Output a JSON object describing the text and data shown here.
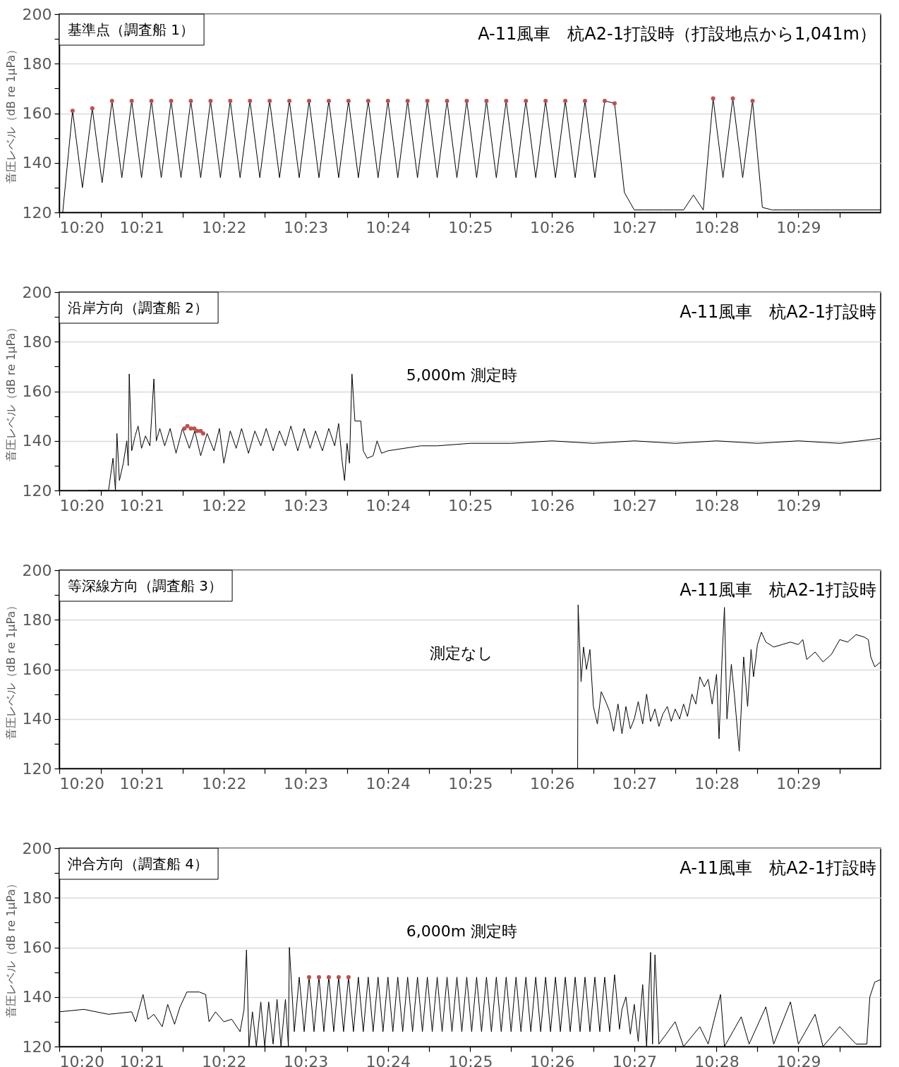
{
  "chart_data": [
    {
      "type": "line",
      "title": "基準点（調査船 1）",
      "subtitle": "A-11風車　杭A2-1打設時（打設地点から1,041m）",
      "ylabel": "音圧レベル（dB re 1μPa）",
      "xlim": [
        10.3333,
        10.5
      ],
      "xticks": [
        {
          "value": 10.3333,
          "label": "10:20"
        },
        {
          "value": 10.3417,
          "label": null
        },
        {
          "value": 10.35,
          "label": "10:21"
        },
        {
          "value": 10.3583,
          "label": null
        },
        {
          "value": 10.3667,
          "label": "10:22"
        },
        {
          "value": 10.375,
          "label": null
        },
        {
          "value": 10.3833,
          "label": "10:23"
        },
        {
          "value": 10.3917,
          "label": null
        },
        {
          "value": 10.4,
          "label": "10:24"
        },
        {
          "value": 10.4083,
          "label": null
        },
        {
          "value": 10.4167,
          "label": "10:25"
        },
        {
          "value": 10.425,
          "label": null
        },
        {
          "value": 10.4333,
          "label": "10:26"
        },
        {
          "value": 10.4417,
          "label": null
        },
        {
          "value": 10.45,
          "label": "10:27"
        },
        {
          "value": 10.4583,
          "label": null
        },
        {
          "value": 10.4667,
          "label": "10:28"
        },
        {
          "value": 10.475,
          "label": null
        },
        {
          "value": 10.4833,
          "label": "10:29"
        },
        {
          "value": 10.4917,
          "label": null
        }
      ],
      "ylim": [
        120,
        200
      ],
      "yticks": [
        120,
        {
          "value": 130,
          "label": null
        },
        140,
        {
          "value": 150,
          "label": null
        },
        160,
        {
          "value": 170,
          "label": null
        },
        180,
        {
          "value": 190,
          "label": null
        },
        200
      ],
      "grid": "y",
      "series": [
        {
          "type": "line",
          "color": "#000000",
          "x": [
            10.334,
            10.336,
            10.338,
            10.34,
            10.342,
            10.344,
            10.346,
            10.348,
            10.35,
            10.352,
            10.354,
            10.356,
            10.358,
            10.36,
            10.362,
            10.364,
            10.366,
            10.368,
            10.37,
            10.372,
            10.374,
            10.376,
            10.378,
            10.38,
            10.382,
            10.384,
            10.386,
            10.388,
            10.39,
            10.392,
            10.394,
            10.396,
            10.398,
            10.4,
            10.402,
            10.404,
            10.406,
            10.408,
            10.41,
            10.412,
            10.414,
            10.416,
            10.418,
            10.42,
            10.422,
            10.424,
            10.426,
            10.428,
            10.43,
            10.432,
            10.434,
            10.436,
            10.438,
            10.44,
            10.442,
            10.444,
            10.446,
            10.448,
            10.45,
            10.452,
            10.454,
            10.456,
            10.458,
            10.46,
            10.462,
            10.464,
            10.466,
            10.468,
            10.47,
            10.472,
            10.474,
            10.476,
            10.478,
            10.48,
            10.482,
            10.484,
            10.486,
            10.488,
            10.49,
            10.492,
            10.494,
            10.496,
            10.498,
            10.5
          ],
          "values": [
            120,
            161,
            130,
            162,
            132,
            165,
            134,
            165,
            134,
            165,
            134,
            165,
            134,
            165,
            134,
            165,
            134,
            165,
            134,
            165,
            134,
            165,
            134,
            165,
            134,
            165,
            134,
            165,
            134,
            165,
            134,
            165,
            134,
            165,
            134,
            165,
            134,
            165,
            134,
            165,
            134,
            165,
            134,
            165,
            134,
            165,
            134,
            165,
            134,
            165,
            134,
            165,
            134,
            165,
            134,
            165,
            164,
            128,
            121,
            121,
            121,
            121,
            121,
            121,
            127,
            121,
            166,
            134,
            166,
            134,
            165,
            122,
            121,
            121,
            121,
            121,
            121,
            121,
            121,
            121,
            121,
            121,
            121,
            121
          ]
        },
        {
          "type": "scatter",
          "color": "#c0504d",
          "marker": "circle",
          "x": [
            10.336,
            10.34,
            10.344,
            10.348,
            10.352,
            10.356,
            10.36,
            10.364,
            10.368,
            10.372,
            10.376,
            10.38,
            10.384,
            10.388,
            10.392,
            10.396,
            10.4,
            10.404,
            10.408,
            10.412,
            10.416,
            10.42,
            10.424,
            10.428,
            10.432,
            10.436,
            10.44,
            10.444,
            10.446,
            10.466,
            10.47,
            10.474
          ],
          "values": [
            161,
            162,
            165,
            165,
            165,
            165,
            165,
            165,
            165,
            165,
            165,
            165,
            165,
            165,
            165,
            165,
            165,
            165,
            165,
            165,
            165,
            165,
            165,
            165,
            165,
            165,
            165,
            165,
            164,
            166,
            166,
            165
          ]
        }
      ]
    },
    {
      "type": "line",
      "title": "沿岸方向（調査船 2）",
      "subtitle": "A-11風車　杭A2-1打設時",
      "ylabel": "音圧レベル（dB re 1μPa）",
      "xlim": [
        10.3333,
        10.5
      ],
      "xticks": [
        {
          "value": 10.3333,
          "label": "10:20"
        },
        {
          "value": 10.3417,
          "label": null
        },
        {
          "value": 10.35,
          "label": "10:21"
        },
        {
          "value": 10.3583,
          "label": null
        },
        {
          "value": 10.3667,
          "label": "10:22"
        },
        {
          "value": 10.375,
          "label": null
        },
        {
          "value": 10.3833,
          "label": "10:23"
        },
        {
          "value": 10.3917,
          "label": null
        },
        {
          "value": 10.4,
          "label": "10:24"
        },
        {
          "value": 10.4083,
          "label": null
        },
        {
          "value": 10.4167,
          "label": "10:25"
        },
        {
          "value": 10.425,
          "label": null
        },
        {
          "value": 10.4333,
          "label": "10:26"
        },
        {
          "value": 10.4417,
          "label": null
        },
        {
          "value": 10.45,
          "label": "10:27"
        },
        {
          "value": 10.4583,
          "label": null
        },
        {
          "value": 10.4667,
          "label": "10:28"
        },
        {
          "value": 10.475,
          "label": null
        },
        {
          "value": 10.4833,
          "label": "10:29"
        },
        {
          "value": 10.4917,
          "label": null
        }
      ],
      "ylim": [
        120,
        200
      ],
      "yticks": [
        120,
        {
          "value": 130,
          "label": null
        },
        140,
        {
          "value": 150,
          "label": null
        },
        160,
        {
          "value": 170,
          "label": null
        },
        180,
        {
          "value": 190,
          "label": null
        },
        200
      ],
      "grid": "y",
      "annotations": [
        "5,000m 測定時"
      ],
      "series": [
        {
          "type": "line",
          "color": "#000000",
          "x": [
            10.3392,
            10.3433,
            10.3442,
            10.3447,
            10.345,
            10.3455,
            10.3463,
            10.347,
            10.3473,
            10.3475,
            10.348,
            10.3487,
            10.3493,
            10.35,
            10.3508,
            10.3517,
            10.3525,
            10.353,
            10.3537,
            10.3547,
            10.3558,
            10.357,
            10.3583,
            10.3597,
            10.3608,
            10.362,
            10.3633,
            10.3647,
            10.3658,
            10.3667,
            10.368,
            10.3692,
            10.3703,
            10.3717,
            10.373,
            10.3742,
            10.3753,
            10.3767,
            10.378,
            10.3792,
            10.3803,
            10.3817,
            10.383,
            10.3842,
            10.3853,
            10.3867,
            10.388,
            10.3892,
            10.39,
            10.3907,
            10.3912,
            10.3917,
            10.3922,
            10.3927,
            10.3933,
            10.3945,
            10.395,
            10.3958,
            10.397,
            10.3978,
            10.3987,
            10.4,
            10.4033,
            10.4067,
            10.41,
            10.4167,
            10.425,
            10.4333,
            10.4417,
            10.45,
            10.4583,
            10.4667,
            10.475,
            10.4833,
            10.4917,
            10.5
          ],
          "values": [
            120,
            120,
            133,
            120,
            143,
            124,
            131,
            140,
            130,
            167,
            136,
            142,
            146,
            137,
            142,
            138,
            165,
            140,
            145,
            138,
            145,
            135,
            145,
            137,
            144,
            134,
            143,
            136,
            145,
            131,
            144,
            137,
            145,
            135,
            144,
            138,
            145,
            136,
            144,
            138,
            146,
            136,
            145,
            137,
            144,
            136,
            145,
            138,
            147,
            132,
            124,
            139,
            131,
            167,
            148,
            148,
            136,
            133,
            134,
            140,
            135,
            136,
            137,
            138,
            138,
            139,
            139,
            140,
            139,
            140,
            139,
            140,
            139,
            140,
            139,
            141
          ]
        },
        {
          "type": "scatter",
          "color": "#c0504d",
          "marker": "circle",
          "x": [
            10.3587,
            10.3593,
            10.36,
            10.3607,
            10.3613,
            10.362,
            10.3625
          ],
          "values": [
            145,
            146,
            145,
            145,
            144,
            144,
            143
          ]
        }
      ]
    },
    {
      "type": "line",
      "title": "等深線方向（調査船 3）",
      "subtitle": "A-11風車　杭A2-1打設時",
      "ylabel": "音圧レベル（dB re 1μPa）",
      "xlim": [
        10.3333,
        10.5
      ],
      "xticks": [
        {
          "value": 10.3333,
          "label": "10:20"
        },
        {
          "value": 10.3417,
          "label": null
        },
        {
          "value": 10.35,
          "label": "10:21"
        },
        {
          "value": 10.3583,
          "label": null
        },
        {
          "value": 10.3667,
          "label": "10:22"
        },
        {
          "value": 10.375,
          "label": null
        },
        {
          "value": 10.3833,
          "label": "10:23"
        },
        {
          "value": 10.3917,
          "label": null
        },
        {
          "value": 10.4,
          "label": "10:24"
        },
        {
          "value": 10.4083,
          "label": null
        },
        {
          "value": 10.4167,
          "label": "10:25"
        },
        {
          "value": 10.425,
          "label": null
        },
        {
          "value": 10.4333,
          "label": "10:26"
        },
        {
          "value": 10.4417,
          "label": null
        },
        {
          "value": 10.45,
          "label": "10:27"
        },
        {
          "value": 10.4583,
          "label": null
        },
        {
          "value": 10.4667,
          "label": "10:28"
        },
        {
          "value": 10.475,
          "label": null
        },
        {
          "value": 10.4833,
          "label": "10:29"
        },
        {
          "value": 10.4917,
          "label": null
        }
      ],
      "ylim": [
        120,
        200
      ],
      "yticks": [
        120,
        {
          "value": 130,
          "label": null
        },
        140,
        {
          "value": 150,
          "label": null
        },
        160,
        {
          "value": 170,
          "label": null
        },
        180,
        {
          "value": 190,
          "label": null
        },
        200
      ],
      "grid": "y",
      "annotations": [
        "測定なし"
      ],
      "series": [
        {
          "type": "line",
          "color": "#000000",
          "x": [
            10.4385,
            10.4386,
            10.4392,
            10.4397,
            10.4403,
            10.441,
            10.4417,
            10.4425,
            10.4433,
            10.4442,
            10.445,
            10.4458,
            10.4467,
            10.4475,
            10.4483,
            10.4492,
            10.45,
            10.4508,
            10.4517,
            10.4525,
            10.4533,
            10.4542,
            10.455,
            10.4558,
            10.4567,
            10.4575,
            10.4583,
            10.4592,
            10.46,
            10.4608,
            10.4617,
            10.4625,
            10.4633,
            10.4642,
            10.465,
            10.4658,
            10.4667,
            10.4672,
            10.4678,
            10.4683,
            10.4688,
            10.4697,
            10.4703,
            10.4713,
            10.4722,
            10.473,
            10.4737,
            10.4742,
            10.475,
            10.4758,
            10.4767,
            10.4783,
            10.48,
            10.4817,
            10.4833,
            10.4842,
            10.485,
            10.4867,
            10.4883,
            10.49,
            10.4917,
            10.4933,
            10.495,
            10.4967,
            10.4975,
            10.498,
            10.4988,
            10.5
          ],
          "values": [
            120,
            186,
            155,
            169,
            160,
            168,
            145,
            138,
            151,
            147,
            143,
            135,
            146,
            134,
            145,
            136,
            140,
            147,
            138,
            150,
            139,
            144,
            137,
            142,
            145,
            139,
            144,
            140,
            146,
            141,
            150,
            146,
            157,
            153,
            156,
            146,
            158,
            132,
            164,
            185,
            140,
            162,
            150,
            127,
            165,
            145,
            168,
            157,
            170,
            175,
            171,
            169,
            170,
            171,
            170,
            172,
            164,
            167,
            163,
            166,
            172,
            171,
            174,
            173,
            172,
            165,
            161,
            163
          ]
        }
      ]
    },
    {
      "type": "line",
      "title": "沖合方向（調査船 4）",
      "subtitle": "A-11風車　杭A2-1打設時",
      "ylabel": "音圧レベル（dB re 1μPa）",
      "xlim": [
        10.3333,
        10.5
      ],
      "xticks": [
        {
          "value": 10.3333,
          "label": "10:20"
        },
        {
          "value": 10.3417,
          "label": null
        },
        {
          "value": 10.35,
          "label": "10:21"
        },
        {
          "value": 10.3583,
          "label": null
        },
        {
          "value": 10.3667,
          "label": "10:22"
        },
        {
          "value": 10.375,
          "label": null
        },
        {
          "value": 10.3833,
          "label": "10:23"
        },
        {
          "value": 10.3917,
          "label": null
        },
        {
          "value": 10.4,
          "label": "10:24"
        },
        {
          "value": 10.4083,
          "label": null
        },
        {
          "value": 10.4167,
          "label": "10:25"
        },
        {
          "value": 10.425,
          "label": null
        },
        {
          "value": 10.4333,
          "label": "10:26"
        },
        {
          "value": 10.4417,
          "label": null
        },
        {
          "value": 10.45,
          "label": "10:27"
        },
        {
          "value": 10.4583,
          "label": null
        },
        {
          "value": 10.4667,
          "label": "10:28"
        },
        {
          "value": 10.475,
          "label": null
        },
        {
          "value": 10.4833,
          "label": "10:29"
        },
        {
          "value": 10.4917,
          "label": null
        }
      ],
      "ylim": [
        120,
        200
      ],
      "yticks": [
        120,
        {
          "value": 130,
          "label": null
        },
        140,
        {
          "value": 150,
          "label": null
        },
        160,
        {
          "value": 170,
          "label": null
        },
        180,
        {
          "value": 190,
          "label": null
        },
        200
      ],
      "grid": "y",
      "annotations": [
        "6,000m 測定時"
      ],
      "series": [
        {
          "type": "line",
          "color": "#000000",
          "x": [
            10.3333,
            10.3383,
            10.3433,
            10.348,
            10.3488,
            10.3503,
            10.3513,
            10.3525,
            10.3542,
            10.3553,
            10.3567,
            10.3578,
            10.3592,
            10.3617,
            10.363,
            10.3637,
            10.365,
            10.3667,
            10.3683,
            10.37,
            10.3708,
            10.3713,
            10.3718,
            10.3725,
            10.3733,
            10.3742,
            10.375,
            10.3758,
            10.3767,
            10.3775,
            10.3783,
            10.3792,
            10.3798,
            10.38,
            10.381,
            10.382,
            10.383,
            10.384,
            10.385,
            10.386,
            10.387,
            10.388,
            10.389,
            10.39,
            10.391,
            10.392,
            10.393,
            10.394,
            10.395,
            10.396,
            10.397,
            10.398,
            10.399,
            10.4,
            10.401,
            10.402,
            10.403,
            10.404,
            10.405,
            10.406,
            10.407,
            10.408,
            10.409,
            10.41,
            10.411,
            10.412,
            10.413,
            10.414,
            10.415,
            10.416,
            10.417,
            10.418,
            10.419,
            10.42,
            10.421,
            10.422,
            10.423,
            10.424,
            10.425,
            10.426,
            10.427,
            10.428,
            10.429,
            10.43,
            10.431,
            10.432,
            10.433,
            10.434,
            10.435,
            10.436,
            10.437,
            10.438,
            10.439,
            10.44,
            10.441,
            10.442,
            10.443,
            10.444,
            10.445,
            10.446,
            10.447,
            10.4475,
            10.4483,
            10.4492,
            10.45,
            10.4508,
            10.4517,
            10.4525,
            10.4533,
            10.4537,
            10.4542,
            10.455,
            10.4583,
            10.46,
            10.4633,
            10.465,
            10.4675,
            10.4683,
            10.4717,
            10.4733,
            10.4767,
            10.4783,
            10.4817,
            10.4833,
            10.4867,
            10.4883,
            10.4917,
            10.495,
            10.4972,
            10.4978,
            10.4988,
            10.5
          ],
          "values": [
            134,
            135,
            133,
            134,
            130,
            141,
            131,
            133,
            128,
            137,
            129,
            136,
            142,
            142,
            141,
            130,
            134,
            130,
            131,
            126,
            135,
            159,
            120,
            134,
            120,
            138,
            120,
            138,
            121,
            139,
            120,
            139,
            120,
            160,
            126,
            148,
            126,
            148,
            126,
            148,
            126,
            148,
            126,
            148,
            126,
            148,
            126,
            148,
            126,
            148,
            126,
            148,
            126,
            148,
            126,
            148,
            126,
            148,
            126,
            148,
            126,
            148,
            126,
            148,
            126,
            148,
            126,
            148,
            126,
            148,
            126,
            148,
            126,
            148,
            126,
            148,
            126,
            148,
            126,
            148,
            126,
            148,
            126,
            148,
            126,
            148,
            126,
            148,
            126,
            148,
            126,
            148,
            126,
            148,
            126,
            148,
            126,
            148,
            126,
            149,
            127,
            135,
            140,
            125,
            137,
            122,
            145,
            120,
            158,
            121,
            157,
            121,
            130,
            120,
            128,
            121,
            141,
            120,
            132,
            121,
            136,
            121,
            138,
            121,
            133,
            120,
            128,
            121,
            121,
            140,
            146,
            147
          ]
        },
        {
          "type": "scatter",
          "color": "#c0504d",
          "marker": "circle",
          "x": [
            10.384,
            10.386,
            10.388,
            10.39,
            10.392
          ],
          "values": [
            148,
            148,
            148,
            148,
            148
          ]
        }
      ]
    }
  ]
}
